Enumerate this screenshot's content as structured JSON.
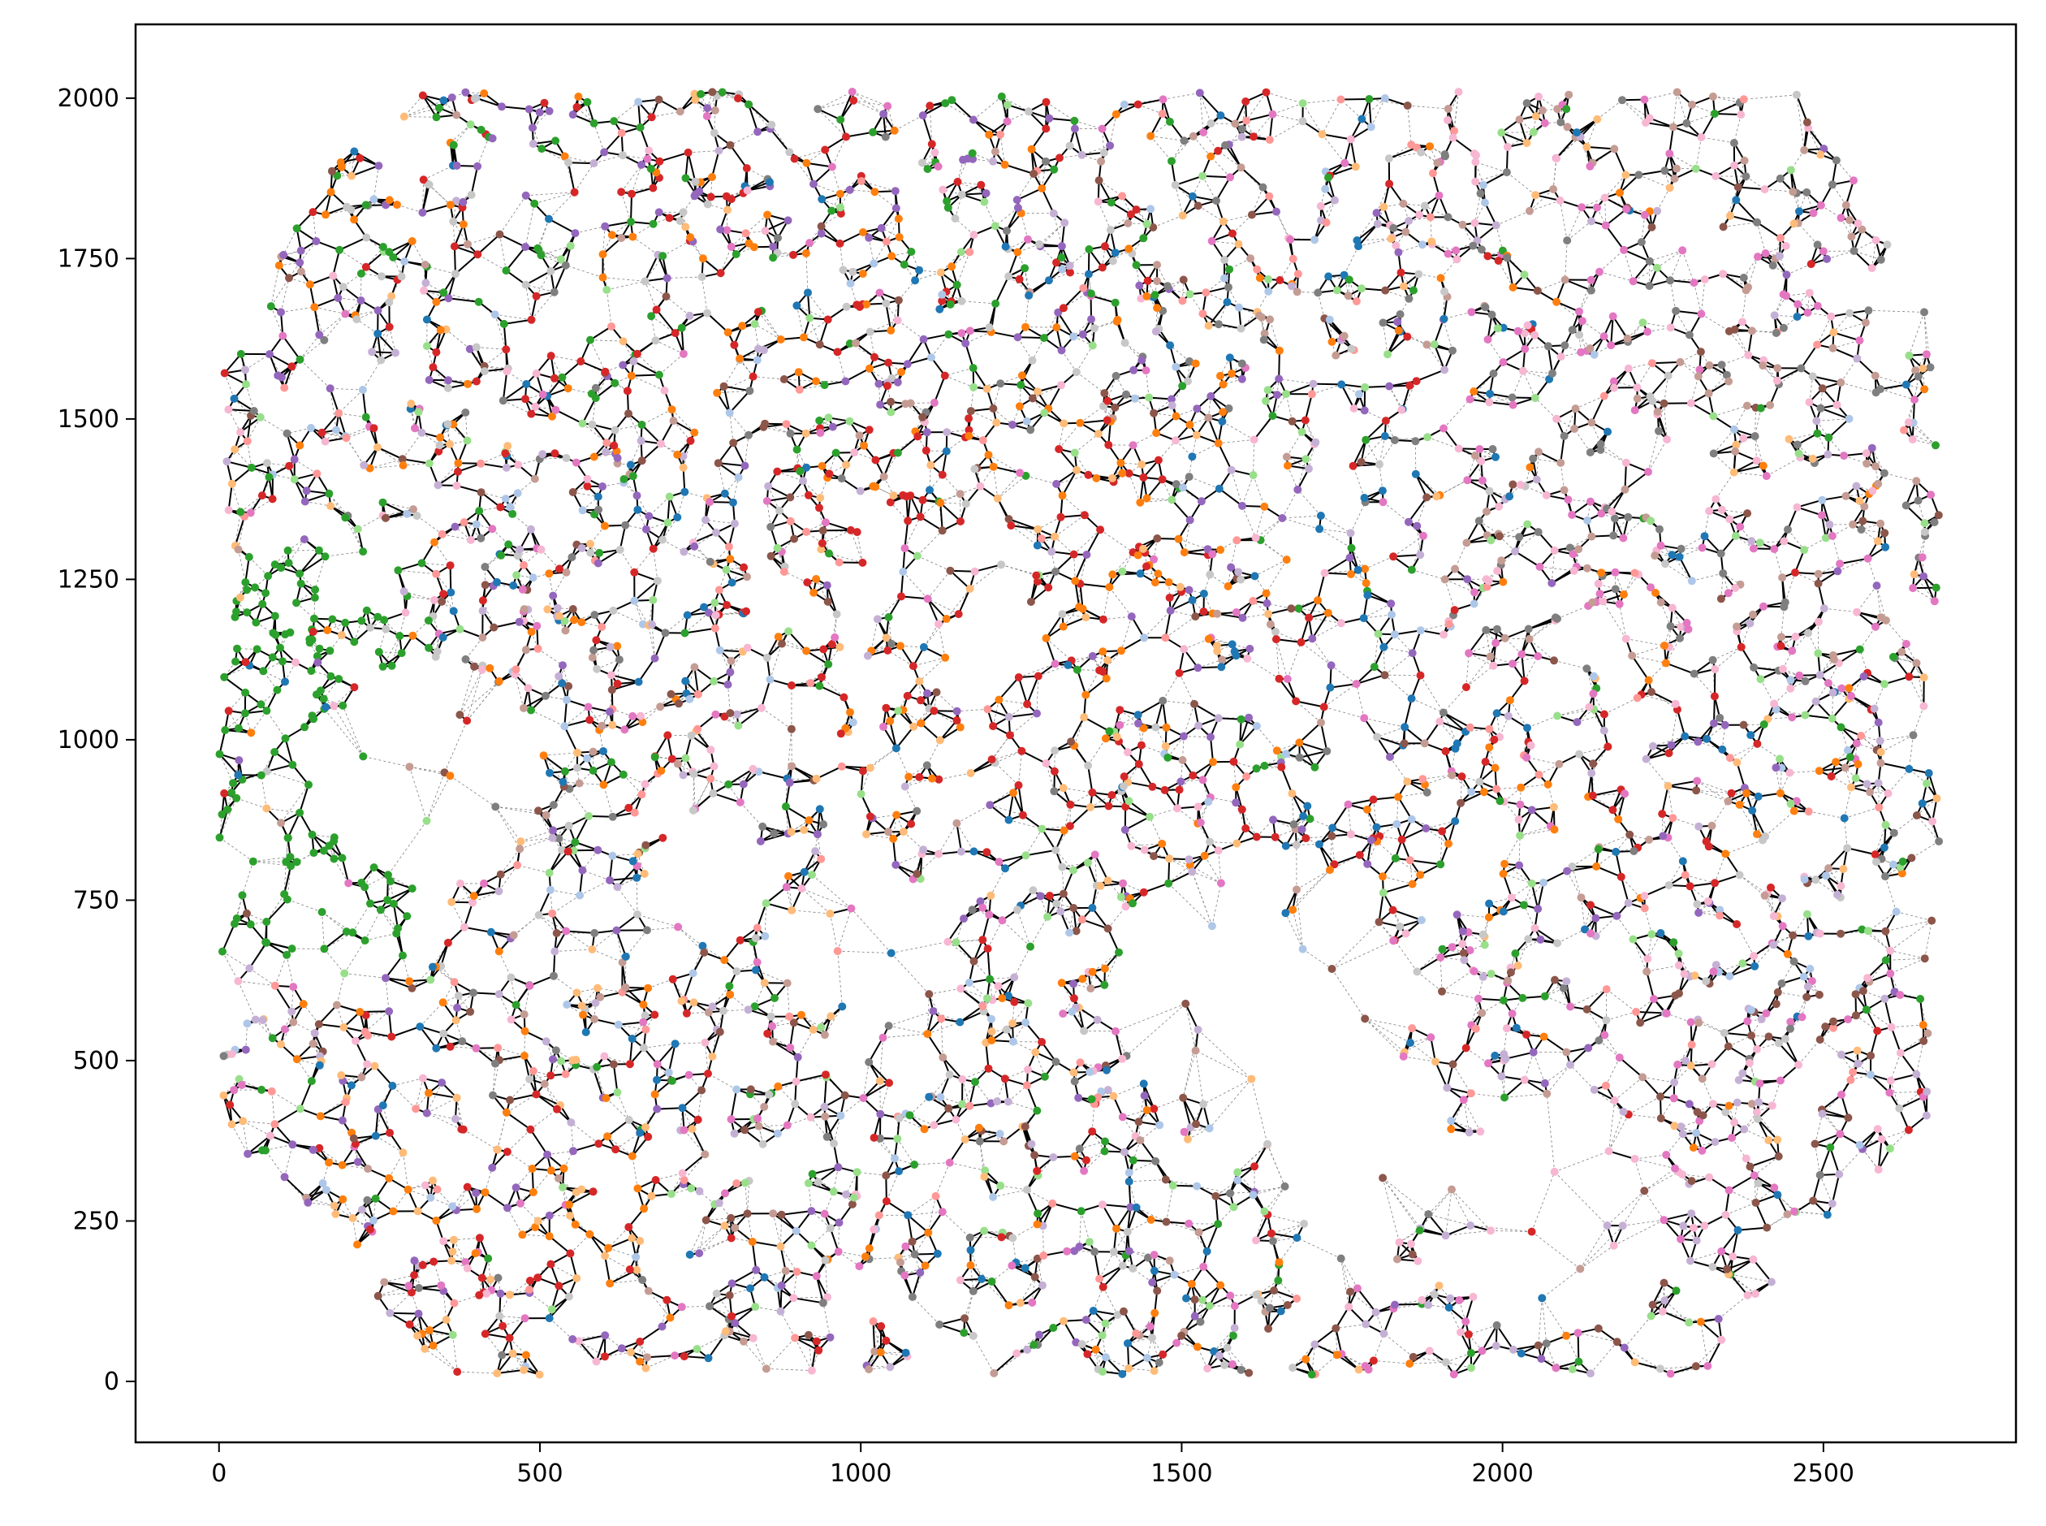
{
  "chart_data": {
    "type": "scatter",
    "title": "",
    "xlabel": "",
    "ylabel": "",
    "xlim": [
      -130,
      2800
    ],
    "ylim": [
      -95,
      2115
    ],
    "x_ticks": [
      0,
      500,
      1000,
      1500,
      2000,
      2500
    ],
    "y_ticks": [
      0,
      250,
      500,
      750,
      1000,
      1250,
      1500,
      1750,
      2000
    ],
    "x_tick_labels": [
      "0",
      "500",
      "1000",
      "1500",
      "2000",
      "2500"
    ],
    "y_tick_labels": [
      "0",
      "250",
      "500",
      "750",
      "1000",
      "1250",
      "1500",
      "1750",
      "2000"
    ],
    "grid": false,
    "legend": "none",
    "description_of_marks": "spatial cell graph: nodes colored by cluster, solid black edges between neighbouring nodes, dashed grey Delaunay edges elsewhere",
    "node_colors": [
      "#d62728",
      "#2ca02c",
      "#ff7f0e",
      "#9467bd",
      "#8c564b",
      "#e377c2",
      "#7f7f7f",
      "#c7c7c7",
      "#1f77b4",
      "#aec7e8",
      "#ffbb78",
      "#98df8a",
      "#ff9896",
      "#c5b0d5",
      "#c49c94",
      "#f7b6d2"
    ],
    "solid_edge_color": "#000000",
    "dashed_edge_color": "#808080",
    "point_count_estimate": 4200,
    "region_density": [
      {
        "region": "top-left",
        "dominant": [
          "#d62728",
          "#2ca02c",
          "#9467bd",
          "#ff7f0e"
        ]
      },
      {
        "region": "top-right",
        "dominant": [
          "#e377c2",
          "#7f7f7f",
          "#c49c94"
        ]
      },
      {
        "region": "left-middle",
        "dominant": [
          "#2ca02c"
        ]
      },
      {
        "region": "center",
        "dominant": [
          "#ff7f0e",
          "#d62728",
          "#ffbb78"
        ]
      },
      {
        "region": "bottom-left",
        "dominant": [
          "#ff7f0e",
          "#d62728",
          "#9467bd"
        ]
      },
      {
        "region": "bottom-right",
        "dominant": [
          "#e377c2",
          "#c5b0d5",
          "#8c564b"
        ]
      }
    ]
  }
}
